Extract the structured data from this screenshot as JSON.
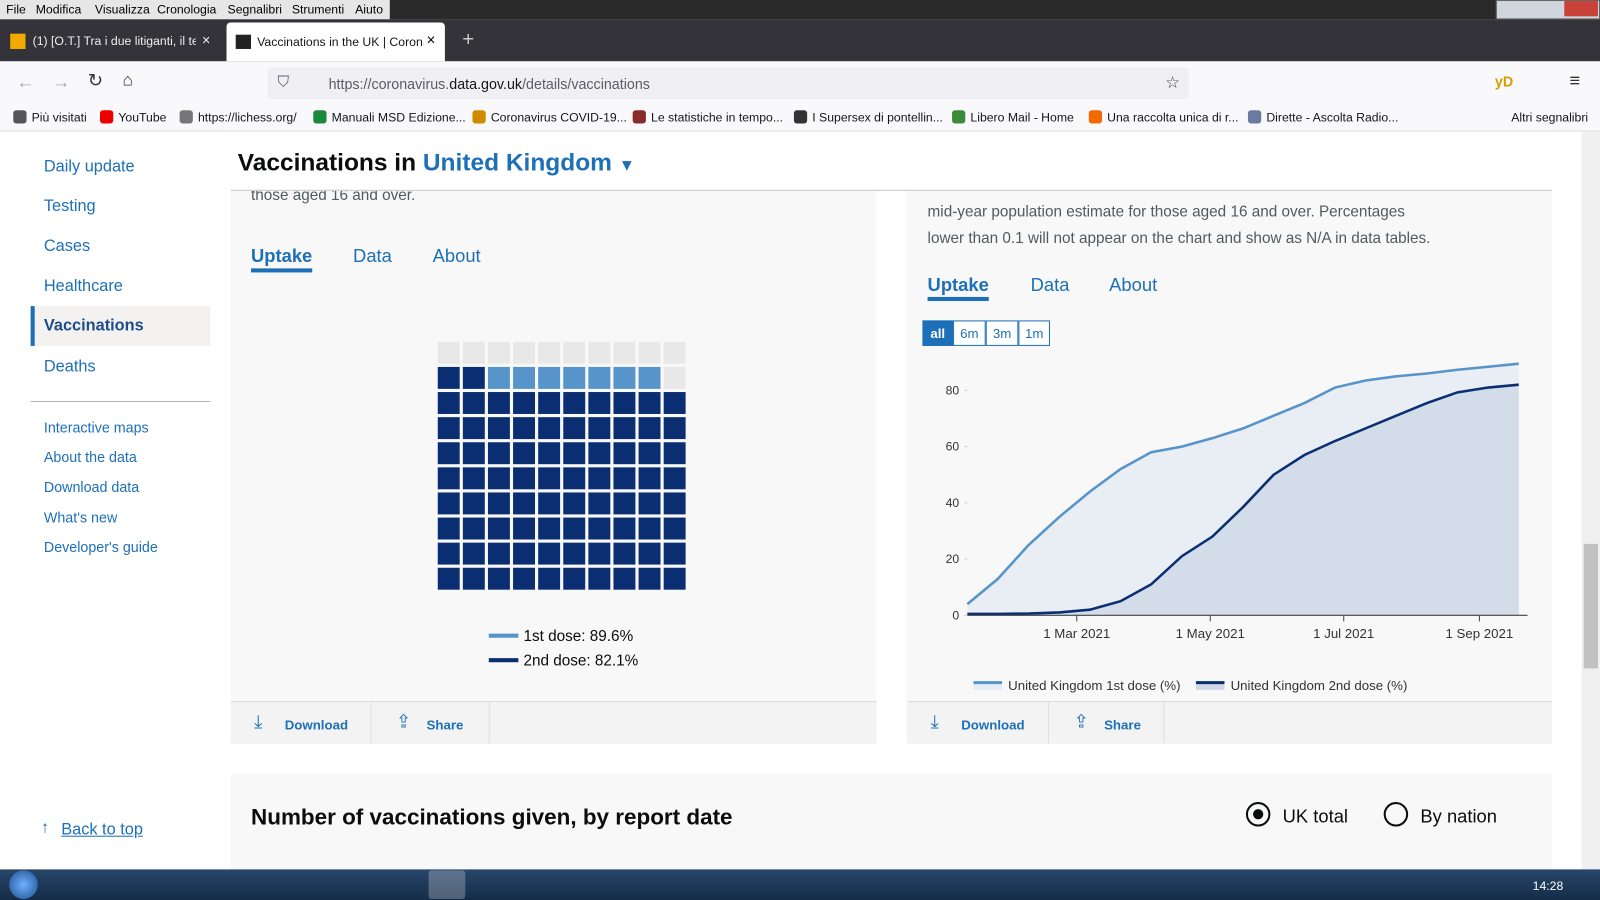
{
  "browser": {
    "menu": [
      "File",
      "Modifica",
      "Visualizza",
      "Cronologia",
      "Segnalibri",
      "Strumenti",
      "Aiuto"
    ],
    "tabs": [
      "(1) [O.T.] Tra i due litiganti, il ter",
      "Vaccinations in the UK | Corona"
    ],
    "url_prefix": "https://coronavirus.",
    "url_domain": "data.gov.uk",
    "url_path": "/details/vaccinations",
    "toolbar_badge": "yD",
    "bookmarks": [
      "Più visitati",
      "YouTube",
      "https://lichess.org/",
      "Manuali MSD Edizione...",
      "Coronavirus COVID-19...",
      "Le statistiche in tempo...",
      "I Supersex di pontellin...",
      "Libero Mail - Home",
      "Una raccolta unica di r...",
      "Dirette - Ascolta Radio..."
    ],
    "other_bookmarks": "Altri segnalibri"
  },
  "sidebar": {
    "main": [
      "Daily update",
      "Testing",
      "Cases",
      "Healthcare",
      "Vaccinations",
      "Deaths"
    ],
    "secondary": [
      "Interactive maps",
      "About the data",
      "Download data",
      "What's new",
      "Developer's guide"
    ],
    "back_to_top": "Back to top"
  },
  "header": {
    "title": "Vaccinations in",
    "area": "United Kingdom"
  },
  "left_card": {
    "text": "those aged 16 and over.",
    "tabs": [
      "Uptake",
      "Data",
      "About"
    ],
    "actions": [
      "Download",
      "Share"
    ]
  },
  "right_card": {
    "text_lines": [
      "mid-year population estimate for those aged 16 and over. Percentages",
      "lower than 0.1 will not appear on the chart and show as N/A in data tables."
    ],
    "tabs": [
      "Uptake",
      "Data",
      "About"
    ],
    "ranges": [
      "all",
      "6m",
      "3m",
      "1m"
    ],
    "actions": [
      "Download",
      "Share"
    ]
  },
  "section": {
    "title": "Number of vaccinations given, by report date",
    "options": [
      "UK total",
      "By nation"
    ]
  },
  "taskbar": {
    "clock": "14:28"
  },
  "chart_data": [
    {
      "type": "waffle",
      "series": [
        {
          "name": "1st dose: 89.6%",
          "value": 89.6,
          "color": "#5694ca"
        },
        {
          "name": "2nd dose: 82.1%",
          "value": 82.1,
          "color": "#0b2e73"
        }
      ]
    },
    {
      "type": "line",
      "x": [
        "2021-01-10",
        "2021-01-24",
        "2021-02-07",
        "2021-02-21",
        "2021-03-07",
        "2021-03-21",
        "2021-04-04",
        "2021-04-18",
        "2021-05-02",
        "2021-05-16",
        "2021-05-30",
        "2021-06-13",
        "2021-06-27",
        "2021-07-11",
        "2021-07-25",
        "2021-08-08",
        "2021-08-22",
        "2021-09-05",
        "2021-09-19"
      ],
      "series": [
        {
          "name": "United Kingdom 1st dose (%)",
          "color": "#5694ca",
          "values": [
            4,
            13,
            25,
            35,
            44,
            52,
            58,
            60,
            63,
            66.5,
            71,
            75.5,
            81,
            83.5,
            85,
            86,
            87.3,
            88.4,
            89.5
          ]
        },
        {
          "name": "United Kingdom 2nd dose (%)",
          "color": "#0b2e73",
          "values": [
            0.5,
            0.5,
            0.6,
            1,
            2,
            5,
            11,
            21,
            28,
            38.5,
            50,
            57,
            62,
            66.5,
            71,
            75.5,
            79.3,
            81,
            82
          ]
        }
      ],
      "xlim": [
        "2021-01-10",
        "2021-09-23"
      ],
      "xticks": [
        {
          "value": "2021-03-01",
          "label": "1 Mar 2021"
        },
        {
          "value": "2021-05-01",
          "label": "1 May 2021"
        },
        {
          "value": "2021-07-01",
          "label": "1 Jul 2021"
        },
        {
          "value": "2021-09-01",
          "label": "1 Sep 2021"
        }
      ],
      "ylim": [
        0,
        90
      ],
      "yticks": [
        0,
        20,
        40,
        60,
        80
      ],
      "grid": false
    }
  ]
}
